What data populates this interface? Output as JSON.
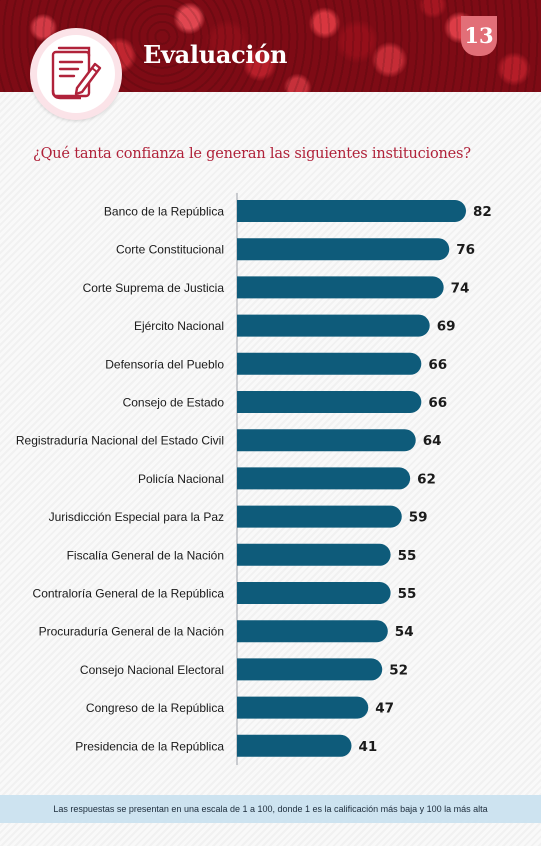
{
  "header": {
    "title": "Evaluación",
    "page_number": "13",
    "icon": "document-pen-icon"
  },
  "question": "¿Qué tanta confianza le generan las siguientes instituciones?",
  "footer": {
    "note": "Las respuestas se presentan en una escala de 1 a 100, donde 1 es la calificación más baja y 100 la más alta"
  },
  "colors": {
    "bar": "#0e5b7a",
    "accent": "#b0223a",
    "footer_bg": "#cde3f0"
  },
  "chart_data": {
    "type": "bar",
    "orientation": "horizontal",
    "title": "",
    "xlabel": "",
    "ylabel": "",
    "xlim": [
      0,
      100
    ],
    "grid": false,
    "categories": [
      "Banco de la República",
      "Corte Constitucional",
      "Corte Suprema de Justicia",
      "Ejército Nacional",
      "Defensoría del Pueblo",
      "Consejo de Estado",
      "Registraduría Nacional del Estado Civil",
      "Policía Nacional",
      "Jurisdicción Especial para la Paz",
      "Fiscalía General de la Nación",
      "Contraloría General de la República",
      "Procuraduría General de la Nación",
      "Consejo Nacional Electoral",
      "Congreso de la República",
      "Presidencia de la República"
    ],
    "values": [
      82,
      76,
      74,
      69,
      66,
      66,
      64,
      62,
      59,
      55,
      55,
      54,
      52,
      47,
      41
    ]
  }
}
